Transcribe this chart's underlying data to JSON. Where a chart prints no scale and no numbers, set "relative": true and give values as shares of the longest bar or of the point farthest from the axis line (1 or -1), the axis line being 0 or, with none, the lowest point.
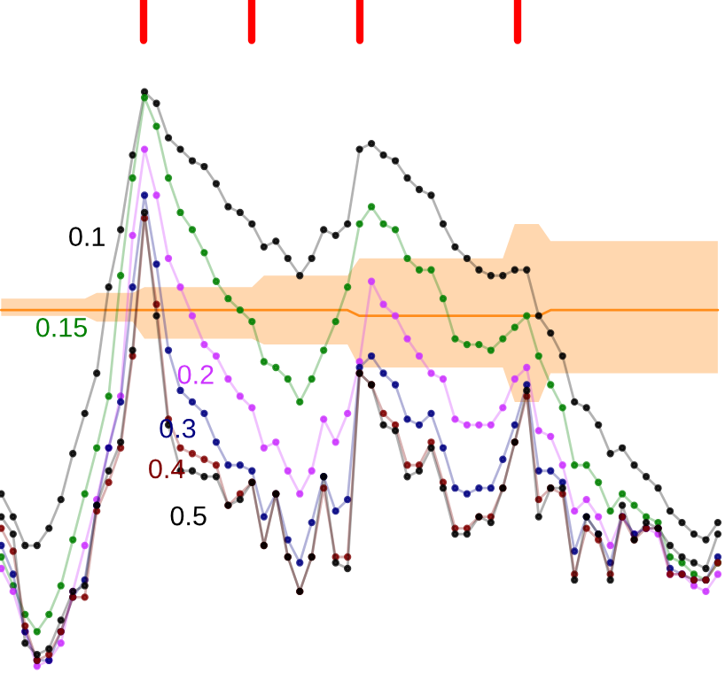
{
  "chart_data": {
    "type": "line",
    "relative": true,
    "marker": "circle",
    "line_style": "solid",
    "grid": false,
    "legend": false,
    "categories": [
      null,
      null,
      null,
      null,
      null,
      null,
      null,
      null,
      null,
      null,
      null,
      null,
      null,
      null,
      null,
      null,
      null,
      null,
      null,
      null,
      null,
      null,
      null,
      null,
      null,
      null,
      null,
      null,
      null,
      null,
      null,
      null,
      null,
      null,
      null,
      null,
      null,
      null,
      null,
      null,
      null,
      null,
      null,
      null,
      null,
      null,
      null,
      null,
      null,
      null,
      null,
      null,
      null,
      null,
      null,
      null,
      null,
      null,
      null,
      null,
      null
    ],
    "series": [
      {
        "type": "line",
        "marker": "none",
        "color": "#ff8c1a",
        "values": [
          0.62,
          0.62,
          0.62,
          0.62,
          0.62,
          0.62,
          0.62,
          0.62,
          0.62,
          0.62,
          0.62,
          0.62,
          0.62,
          0.62,
          0.62,
          0.62,
          0.62,
          0.62,
          0.62,
          0.62,
          0.62,
          0.62,
          0.62,
          0.62,
          0.62,
          0.62,
          0.62,
          0.62,
          0.62,
          0.62,
          0.61,
          0.61,
          0.61,
          0.61,
          0.61,
          0.61,
          0.61,
          0.61,
          0.61,
          0.61,
          0.61,
          0.61,
          0.61,
          0.61,
          0.61,
          0.61,
          0.62,
          0.62,
          0.62,
          0.62,
          0.62,
          0.62,
          0.62,
          0.62,
          0.62,
          0.62,
          0.62,
          0.62,
          0.62,
          0.62,
          0.62
        ],
        "lower": [
          0.61,
          0.61,
          0.61,
          0.61,
          0.61,
          0.61,
          0.61,
          0.61,
          0.6,
          0.6,
          0.6,
          0.6,
          0.57,
          0.57,
          0.57,
          0.57,
          0.57,
          0.57,
          0.57,
          0.57,
          0.57,
          0.57,
          0.56,
          0.56,
          0.56,
          0.56,
          0.56,
          0.56,
          0.56,
          0.56,
          0.52,
          0.52,
          0.52,
          0.52,
          0.52,
          0.52,
          0.52,
          0.52,
          0.52,
          0.52,
          0.52,
          0.52,
          0.52,
          0.46,
          0.46,
          0.46,
          0.51,
          0.51,
          0.51,
          0.51,
          0.51,
          0.51,
          0.51,
          0.51,
          0.51,
          0.51,
          0.51,
          0.51,
          0.51,
          0.51,
          0.51
        ],
        "upper": [
          0.64,
          0.64,
          0.64,
          0.64,
          0.64,
          0.64,
          0.64,
          0.64,
          0.65,
          0.65,
          0.65,
          0.65,
          0.66,
          0.66,
          0.66,
          0.66,
          0.66,
          0.66,
          0.66,
          0.66,
          0.66,
          0.66,
          0.68,
          0.68,
          0.68,
          0.68,
          0.68,
          0.68,
          0.68,
          0.68,
          0.71,
          0.71,
          0.71,
          0.71,
          0.71,
          0.71,
          0.71,
          0.71,
          0.71,
          0.71,
          0.71,
          0.71,
          0.71,
          0.77,
          0.77,
          0.77,
          0.74,
          0.74,
          0.74,
          0.74,
          0.74,
          0.74,
          0.74,
          0.74,
          0.74,
          0.74,
          0.74,
          0.74,
          0.74,
          0.74,
          0.74
        ]
      },
      {
        "name": "0.1",
        "color": "#000000",
        "values": [
          0.3,
          0.26,
          0.21,
          0.21,
          0.24,
          0.29,
          0.37,
          0.44,
          0.51,
          0.66,
          0.76,
          0.89,
          1,
          0.98,
          0.92,
          0.9,
          0.88,
          0.87,
          0.84,
          0.8,
          0.79,
          0.77,
          0.73,
          0.74,
          0.71,
          0.68,
          0.71,
          0.76,
          0.75,
          0.77,
          0.9,
          0.91,
          0.89,
          0.88,
          0.85,
          0.83,
          0.82,
          0.77,
          0.73,
          0.71,
          0.69,
          0.68,
          0.68,
          0.69,
          0.69,
          0.61,
          0.58,
          0.54,
          0.46,
          0.45,
          0.42,
          0.37,
          0.38,
          0.35,
          0.33,
          0.31,
          0.27,
          0.25,
          0.23,
          0.22,
          0.25
        ]
      },
      {
        "name": "0.15",
        "color": "#008000",
        "values": [
          0.19,
          0.14,
          0.09,
          0.06,
          0.09,
          0.14,
          0.22,
          0.3,
          0.38,
          0.47,
          0.68,
          0.85,
          0.99,
          0.94,
          0.85,
          0.79,
          0.76,
          0.72,
          0.67,
          0.64,
          0.62,
          0.6,
          0.53,
          0.52,
          0.5,
          0.46,
          0.5,
          0.55,
          0.6,
          0.66,
          0.77,
          0.8,
          0.77,
          0.76,
          0.71,
          0.69,
          0.69,
          0.64,
          0.57,
          0.56,
          0.56,
          0.55,
          0.57,
          0.59,
          0.61,
          0.54,
          0.49,
          0.45,
          0.35,
          0.35,
          0.32,
          0.27,
          0.3,
          0.28,
          0.26,
          0.25,
          0.19,
          0.18,
          0.16,
          0.15,
          0.18
        ]
      },
      {
        "name": "0.2",
        "color": "#cc33ff",
        "values": [
          0.17,
          0.13,
          0.06,
          0,
          0.01,
          0.04,
          0.13,
          0.21,
          0.29,
          0.38,
          0.47,
          0.75,
          0.9,
          0.82,
          0.71,
          0.66,
          0.61,
          0.56,
          0.54,
          0.5,
          0.47,
          0.45,
          0.38,
          0.39,
          0.34,
          0.3,
          0.34,
          0.43,
          0.39,
          0.44,
          0.53,
          0.67,
          0.63,
          0.61,
          0.57,
          0.54,
          0.51,
          0.5,
          0.43,
          0.42,
          0.42,
          0.42,
          0.45,
          0.5,
          0.52,
          0.41,
          0.4,
          0.35,
          0.27,
          0.29,
          0.26,
          0.21,
          0.26,
          0.23,
          0.24,
          0.23,
          0.16,
          0.16,
          0.14,
          0.13,
          0.16
        ]
      },
      {
        "name": "0.3",
        "color": "#000080",
        "values": [
          0.21,
          0.16,
          0.06,
          0.01,
          0.01,
          0.06,
          0.12,
          0.15,
          0.28,
          0.38,
          0.46,
          0.66,
          0.82,
          0.7,
          0.55,
          0.48,
          0.46,
          0.44,
          0.39,
          0.35,
          0.35,
          0.34,
          0.26,
          0.3,
          0.22,
          0.18,
          0.25,
          0.33,
          0.27,
          0.29,
          0.52,
          0.54,
          0.51,
          0.49,
          0.43,
          0.42,
          0.44,
          0.38,
          0.31,
          0.3,
          0.31,
          0.31,
          0.36,
          0.42,
          0.49,
          0.34,
          0.34,
          0.32,
          0.2,
          0.26,
          0.23,
          0.18,
          0.26,
          0.23,
          0.24,
          0.24,
          0.17,
          0.16,
          0.15,
          0.15,
          0.19
        ]
      },
      {
        "name": "0.4",
        "color": "#800000",
        "values": [
          0.24,
          0.2,
          0.07,
          0.01,
          0.02,
          0.06,
          0.12,
          0.12,
          0.27,
          0.32,
          0.38,
          0.54,
          0.78,
          0.63,
          0.43,
          0.38,
          0.37,
          0.36,
          0.35,
          0.28,
          0.3,
          0.32,
          0.21,
          0.3,
          0.19,
          0.13,
          0.19,
          0.31,
          0.19,
          0.19,
          0.51,
          0.49,
          0.44,
          0.42,
          0.35,
          0.35,
          0.39,
          0.32,
          0.24,
          0.24,
          0.26,
          0.26,
          0.31,
          0.39,
          0.47,
          0.29,
          0.31,
          0.3,
          0.16,
          0.24,
          0.22,
          0.16,
          0.26,
          0.22,
          0.24,
          0.24,
          0.16,
          0.16,
          0.15,
          0.15,
          0.18
        ]
      },
      {
        "name": "0.5",
        "color": "#000000",
        "values": [
          0.26,
          0.23,
          0.04,
          0.02,
          0.03,
          0.08,
          0.13,
          0.14,
          0.28,
          0.34,
          0.39,
          0.55,
          0.79,
          0.61,
          0.42,
          0.34,
          0.34,
          0.33,
          0.33,
          0.28,
          0.29,
          0.32,
          0.21,
          0.3,
          0.19,
          0.13,
          0.19,
          0.33,
          0.18,
          0.17,
          0.51,
          0.49,
          0.42,
          0.41,
          0.33,
          0.34,
          0.38,
          0.31,
          0.23,
          0.23,
          0.26,
          0.25,
          0.31,
          0.39,
          0.48,
          0.26,
          0.31,
          0.31,
          0.15,
          0.26,
          0.23,
          0.15,
          0.28,
          0.22,
          0.25,
          0.24,
          0.21,
          0.19,
          0.18,
          0.17,
          0.23
        ]
      }
    ]
  }
}
